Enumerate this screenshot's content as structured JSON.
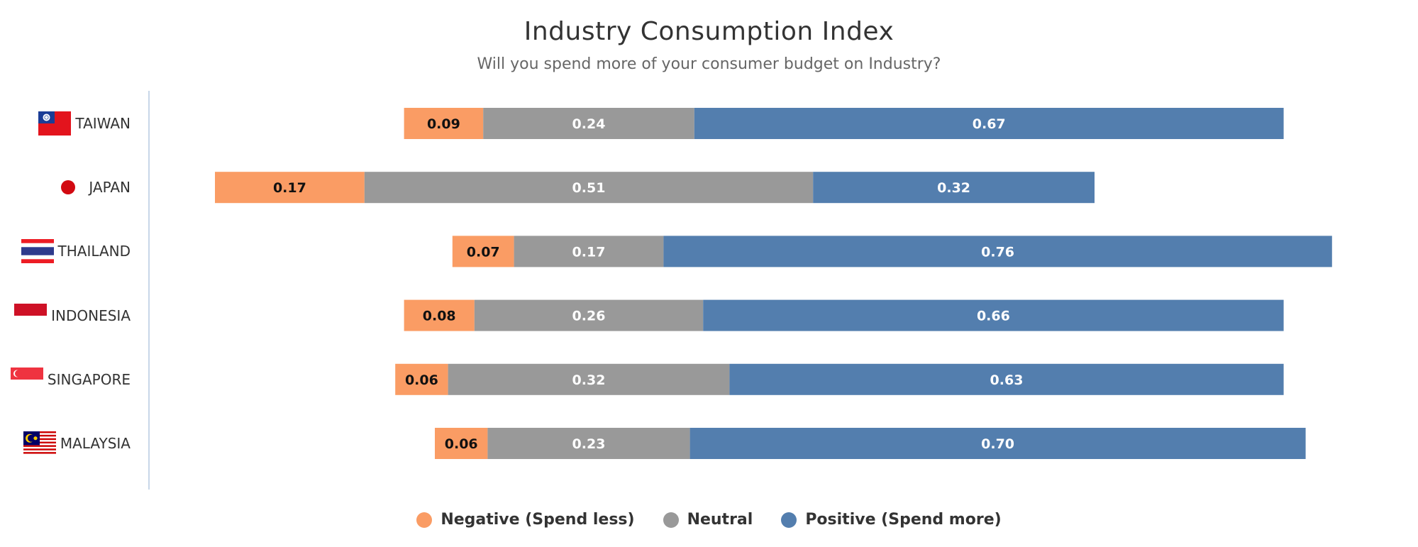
{
  "chart_data": {
    "type": "bar",
    "stacked": true,
    "orientation": "horizontal",
    "title": "Industry Consumption Index",
    "subtitle": "Will you spend more of your consumer budget on Industry?",
    "categories": [
      "TAIWAN",
      "JAPAN",
      "THAILAND",
      "INDONESIA",
      "SINGAPORE",
      "MALAYSIA"
    ],
    "series": [
      {
        "name": "Negative (Spend less)",
        "color": "#fa9c64",
        "label_color": "#111111",
        "values": [
          0.09,
          0.17,
          0.07,
          0.08,
          0.06,
          0.06
        ],
        "labels": [
          "0.09",
          "0.17",
          "0.07",
          "0.08",
          "0.06",
          "0.06"
        ]
      },
      {
        "name": "Neutral",
        "color": "#999999",
        "label_color": "#ffffff",
        "values": [
          0.24,
          0.51,
          0.17,
          0.26,
          0.32,
          0.23
        ],
        "labels": [
          "0.24",
          "0.51",
          "0.17",
          "0.26",
          "0.32",
          "0.23"
        ]
      },
      {
        "name": "Positive (Spend more)",
        "color": "#537eae",
        "label_color": "#ffffff",
        "values": [
          0.67,
          0.32,
          0.76,
          0.66,
          0.63,
          0.7
        ],
        "labels": [
          "0.67",
          "0.32",
          "0.76",
          "0.66",
          "0.63",
          "0.70"
        ]
      }
    ],
    "legend_position": "bottom-center",
    "grid": false
  },
  "flags": [
    "taiwan-flag-icon",
    "japan-flag-icon",
    "thailand-flag-icon",
    "indonesia-flag-icon",
    "singapore-flag-icon",
    "malaysia-flag-icon"
  ]
}
